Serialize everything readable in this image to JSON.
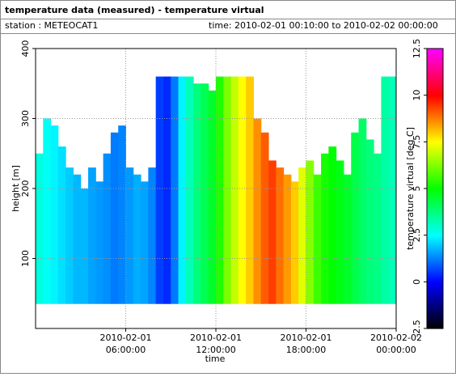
{
  "chart_data": {
    "type": "heatmap-columns",
    "title": "temperature data (measured) - temperature virtual",
    "station": "station : METEOCAT1",
    "period": "time: 2010-02-01 00:10:00 to 2010-02-02 00:00:00",
    "xlabel": "time",
    "ylabel": "height [m]",
    "colorbar_label": "temperature virtual [deg C]",
    "x": [
      0,
      0.5,
      1,
      1.5,
      2,
      2.5,
      3,
      3.5,
      4,
      4.5,
      5,
      5.5,
      6,
      6.5,
      7,
      7.5,
      8,
      8.5,
      9,
      9.5,
      10,
      10.5,
      11,
      11.5,
      12,
      12.5,
      13,
      13.5,
      14,
      14.5,
      15,
      15.5,
      16,
      16.5,
      17,
      17.5,
      18,
      18.5,
      19,
      19.5,
      20,
      20.5,
      21,
      21.5,
      22,
      22.5,
      23,
      23.5
    ],
    "bottom": 35,
    "tops": [
      250,
      300,
      290,
      260,
      230,
      220,
      200,
      230,
      210,
      250,
      280,
      290,
      230,
      220,
      210,
      230,
      360,
      360,
      360,
      360,
      360,
      350,
      350,
      340,
      360,
      360,
      360,
      360,
      360,
      300,
      280,
      240,
      230,
      220,
      210,
      230,
      240,
      220,
      250,
      260,
      240,
      220,
      280,
      300,
      270,
      250,
      360,
      360
    ],
    "values": [
      2.8,
      2.6,
      2.4,
      2.2,
      2.0,
      1.8,
      1.8,
      1.6,
      1.5,
      1.4,
      1.2,
      1.3,
      1.5,
      1.7,
      1.6,
      1.3,
      0.6,
      0.4,
      1.2,
      2.4,
      3.2,
      3.8,
      4.2,
      4.6,
      5.3,
      6.2,
      6.9,
      7.5,
      8.0,
      8.6,
      9.1,
      9.4,
      8.9,
      8.5,
      8.0,
      7.2,
      6.3,
      5.6,
      5.2,
      5.0,
      4.8,
      4.6,
      4.3,
      4.0,
      3.8,
      3.7,
      3.4,
      3.2
    ],
    "xlim": [
      0,
      24
    ],
    "xticks": [
      {
        "value": 6,
        "label": [
          "2010-02-01",
          "06:00:00"
        ]
      },
      {
        "value": 12,
        "label": [
          "2010-02-01",
          "12:00:00"
        ]
      },
      {
        "value": 18,
        "label": [
          "2010-02-01",
          "18:00:00"
        ]
      },
      {
        "value": 24,
        "label": [
          "2010-02-02",
          "00:00:00"
        ]
      }
    ],
    "ylim": [
      0,
      400
    ],
    "yticks": [
      100,
      200,
      300,
      400
    ],
    "grid": true,
    "clim": [
      -2.5,
      12.5
    ],
    "cticks": [
      -2.5,
      0,
      2.5,
      5,
      7.5,
      10,
      12.5
    ],
    "colormap": [
      "#000000",
      "#0000ff",
      "#00ffff",
      "#00ff00",
      "#ffff00",
      "#ff0000",
      "#ff00ff"
    ]
  }
}
